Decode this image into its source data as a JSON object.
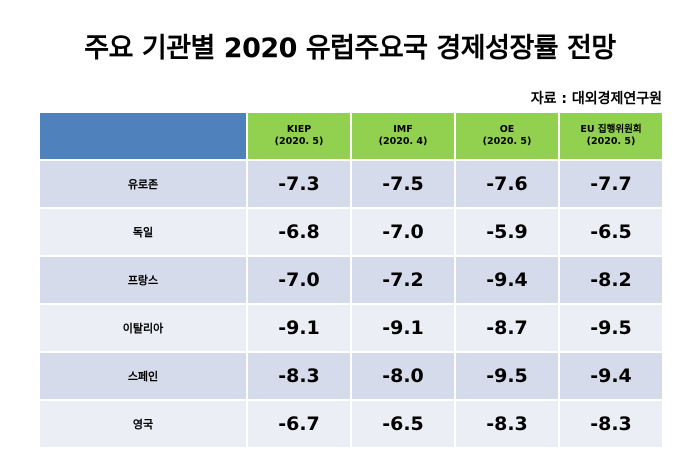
{
  "title": "주요 기관별 2020 유럽주요국 경제성장률 전망",
  "source": "자료 : 대외경제연구원",
  "headers": [
    {
      "name": "KIEP",
      "date": "(2020. 5)"
    },
    {
      "name": "IMF",
      "date": "(2020. 4)"
    },
    {
      "name": "OE",
      "date": "(2020. 5)"
    },
    {
      "name": "EU 집행위원회",
      "date": "(2020. 5)"
    }
  ],
  "rows": [
    {
      "name": "유로존",
      "values": [
        "-7.3",
        "-7.5",
        "-7.6",
        "-7.7"
      ]
    },
    {
      "name": "독일",
      "values": [
        "-6.8",
        "-7.0",
        "-5.9",
        "-6.5"
      ]
    },
    {
      "name": "프랑스",
      "values": [
        "-7.0",
        "-7.2",
        "-9.4",
        "-8.2"
      ]
    },
    {
      "name": "이탈리아",
      "values": [
        "-9.1",
        "-9.1",
        "-8.7",
        "-9.5"
      ]
    },
    {
      "name": "스페인",
      "values": [
        "-8.3",
        "-8.0",
        "-9.5",
        "-9.4"
      ]
    },
    {
      "name": "영국",
      "values": [
        "-6.7",
        "-6.5",
        "-8.3",
        "-8.3"
      ]
    }
  ],
  "colors": {
    "header_corner": "#4f81bd",
    "header_cell": "#92d050",
    "row_odd": "#d5dbea",
    "row_even": "#ebeef5"
  }
}
